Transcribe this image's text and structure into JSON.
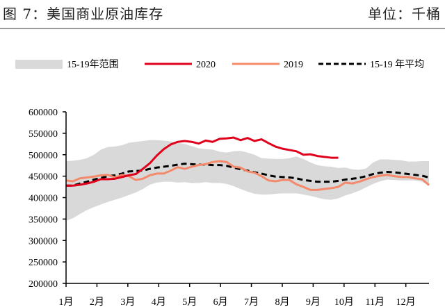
{
  "header": {
    "title": "图 7：美国商业原油库存",
    "unit": "单位：千桶"
  },
  "chart_data": {
    "type": "line",
    "title": "美国商业原油库存",
    "unit": "千桶",
    "values_in_thousands": true,
    "ylim": [
      200000,
      600000
    ],
    "yticks": [
      "600000",
      "550000",
      "500000",
      "450000",
      "400000",
      "350000",
      "300000",
      "250000",
      "200000"
    ],
    "xticks": [
      "1月",
      "2月",
      "3月",
      "4月",
      "5月",
      "6月",
      "7月",
      "8月",
      "9月",
      "10月",
      "11月",
      "12月"
    ],
    "x_unit": "week",
    "legend": {
      "placement": "top",
      "entries": [
        "15-19年范围",
        "2020",
        "2019",
        "15-19 年平均"
      ]
    },
    "band": {
      "name": "15-19年范围",
      "color": "#d9d9d9",
      "max": [
        485,
        486,
        488,
        492,
        500,
        512,
        518,
        519,
        522,
        528,
        530,
        532,
        534,
        534,
        533,
        531,
        528,
        525,
        520,
        515,
        513,
        512,
        507,
        505,
        508,
        509,
        505,
        500,
        492,
        491,
        490,
        490,
        492,
        496,
        490,
        482,
        476,
        473,
        472,
        469,
        470,
        466,
        465,
        468,
        482,
        489,
        489,
        488,
        487,
        484,
        484,
        485,
        485
      ],
      "min": [
        346,
        352,
        362,
        371,
        378,
        384,
        390,
        395,
        400,
        406,
        412,
        420,
        430,
        435,
        437,
        437,
        435,
        436,
        434,
        434,
        436,
        434,
        434,
        432,
        427,
        420,
        414,
        409,
        407,
        407,
        409,
        410,
        410,
        410,
        407,
        404,
        400,
        396,
        395,
        398,
        405,
        410,
        416,
        424,
        432,
        438,
        442,
        441,
        440,
        440,
        440,
        437,
        428
      ]
    },
    "series": [
      {
        "name": "2020",
        "color": "#e0001b",
        "style": "solid",
        "values": [
          428,
          428,
          430,
          433,
          437,
          443,
          443,
          444,
          448,
          452,
          455,
          467,
          480,
          498,
          513,
          524,
          530,
          532,
          530,
          526,
          533,
          530,
          537,
          538,
          540,
          534,
          539,
          532,
          536,
          527,
          519,
          514,
          511,
          508,
          500,
          501,
          497,
          495,
          493,
          493
        ]
      },
      {
        "name": "2019",
        "color": "#f4896b",
        "style": "solid",
        "values": [
          440,
          438,
          445,
          447,
          449,
          452,
          453,
          447,
          453,
          450,
          441,
          444,
          452,
          456,
          456,
          463,
          471,
          467,
          472,
          476,
          478,
          483,
          485,
          483,
          472,
          470,
          461,
          458,
          450,
          440,
          438,
          441,
          441,
          431,
          425,
          418,
          418,
          420,
          422,
          425,
          435,
          433,
          437,
          443,
          448,
          451,
          453,
          450,
          448,
          448,
          445,
          443,
          429
        ]
      },
      {
        "name": "15-19 年平均",
        "color": "#000000",
        "style": "dashed",
        "values": [
          428,
          428,
          433,
          437,
          442,
          446,
          450,
          452,
          456,
          461,
          462,
          463,
          467,
          470,
          472,
          474,
          477,
          479,
          478,
          477,
          477,
          476,
          476,
          474,
          470,
          466,
          463,
          459,
          456,
          452,
          449,
          448,
          447,
          445,
          441,
          439,
          437,
          437,
          437,
          439,
          442,
          444,
          446,
          450,
          455,
          458,
          460,
          459,
          457,
          455,
          453,
          451,
          447
        ]
      }
    ]
  }
}
